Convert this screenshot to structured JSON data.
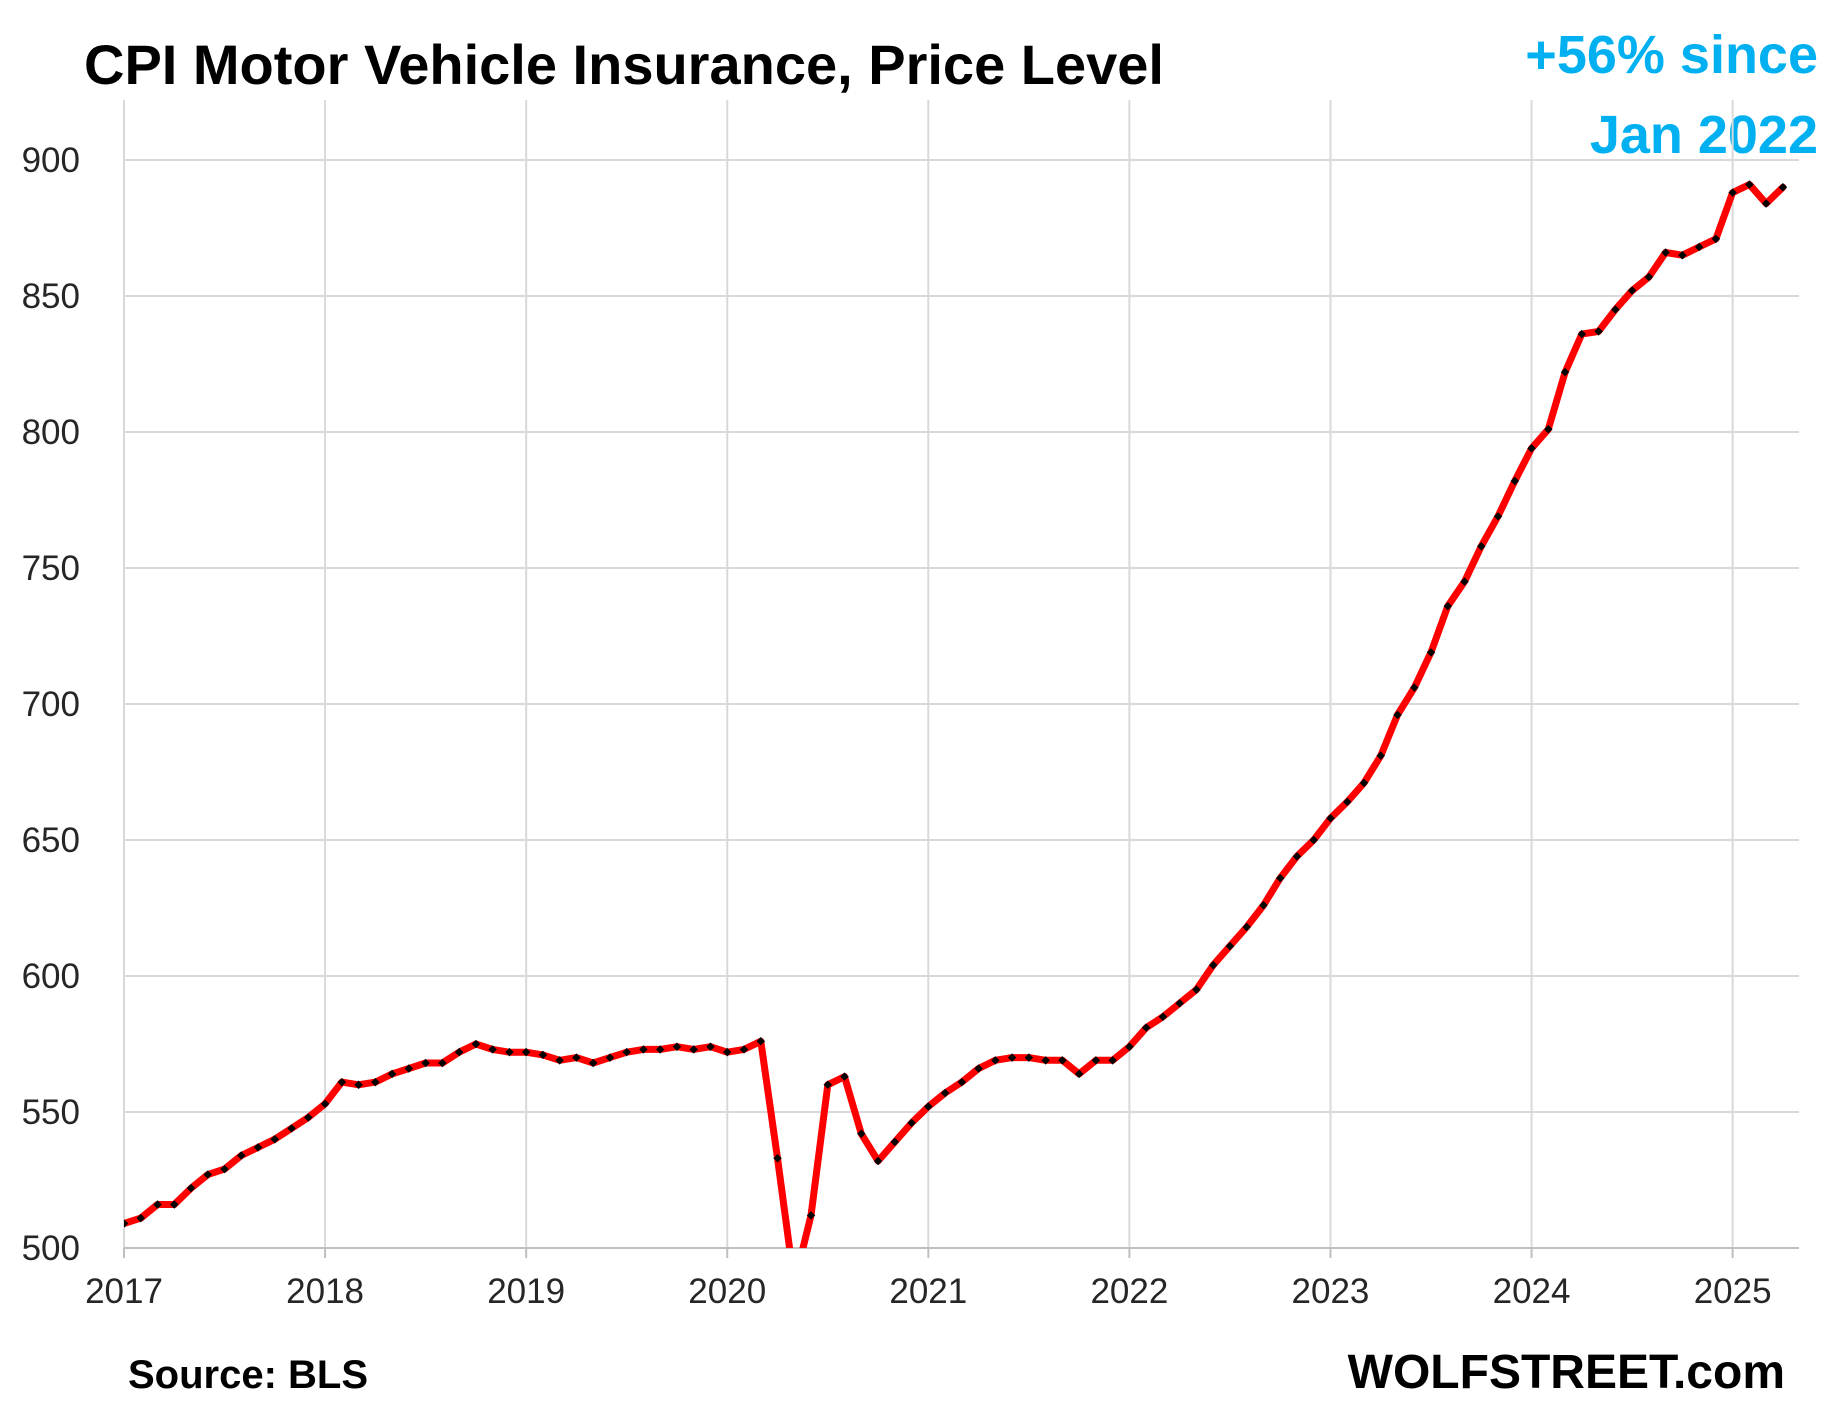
{
  "chart_data": {
    "type": "line",
    "title": "CPI Motor Vehicle Insurance, Price Level",
    "annotation": {
      "line1": "+56% since",
      "line2": "Jan 2022",
      "color": "#00b0f0"
    },
    "source": "Source: BLS",
    "watermark": "WOLFSTREET.com",
    "ylim": [
      500,
      900
    ],
    "yticks": [
      500,
      550,
      600,
      650,
      700,
      750,
      800,
      850,
      900
    ],
    "xlim": [
      2017,
      2025.33
    ],
    "xticks": [
      "2017",
      "2018",
      "2019",
      "2020",
      "2021",
      "2022",
      "2023",
      "2024",
      "2025"
    ],
    "grid": true,
    "series": [
      {
        "line_color": "#ff0000",
        "marker_color": "#000000",
        "start": "2017-01",
        "frequency": "monthly",
        "values": [
          509,
          511,
          516,
          516,
          522,
          527,
          529,
          534,
          537,
          540,
          544,
          548,
          553,
          561,
          560,
          561,
          564,
          566,
          568,
          568,
          572,
          575,
          573,
          572,
          572,
          571,
          569,
          570,
          568,
          570,
          572,
          573,
          573,
          574,
          573,
          574,
          572,
          573,
          576,
          533,
          487,
          512,
          560,
          563,
          542,
          532,
          539,
          546,
          552,
          557,
          561,
          566,
          569,
          570,
          570,
          569,
          569,
          564,
          569,
          569,
          574,
          581,
          585,
          590,
          595,
          604,
          611,
          618,
          626,
          636,
          644,
          650,
          658,
          664,
          671,
          681,
          696,
          706,
          719,
          736,
          745,
          758,
          769,
          782,
          794,
          801,
          822,
          836,
          837,
          845,
          852,
          857,
          866,
          865,
          868,
          871,
          888,
          891,
          884,
          890
        ]
      }
    ]
  }
}
